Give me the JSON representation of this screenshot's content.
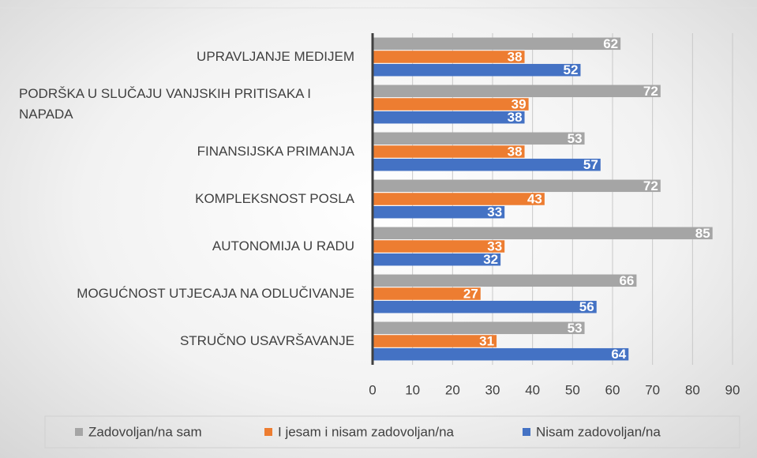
{
  "chart_data": {
    "type": "hbar",
    "categories": [
      "UPRAVLJANJE MEDIJEM",
      "PODRŠKA U SLUČAJU VANJSKIH PRITISAKA I NAPADA",
      "FINANSIJSKA PRIMANJA",
      "KOMPLEKSNOST POSLA",
      "AUTONOMIJA U RADU",
      "MOGUĆNOST UTJECAJA NA ODLUČIVANJE",
      "STRUČNO USAVRŠAVANJE"
    ],
    "series": [
      {
        "name": "Zadovoljan/na sam",
        "color": "#a5a5a5",
        "values": [
          62,
          72,
          53,
          72,
          85,
          66,
          53
        ]
      },
      {
        "name": "I jesam i nisam zadovoljan/na",
        "color": "#ed7d31",
        "values": [
          38,
          39,
          38,
          43,
          33,
          27,
          31
        ]
      },
      {
        "name": "Nisam zadovoljan/na",
        "color": "#4472c4",
        "values": [
          52,
          38,
          57,
          33,
          32,
          56,
          64
        ]
      }
    ],
    "xlim": [
      0,
      90
    ],
    "xticks": [
      0,
      10,
      20,
      30,
      40,
      50,
      60,
      70,
      80,
      90
    ],
    "grid": true,
    "legend": "bottom"
  }
}
